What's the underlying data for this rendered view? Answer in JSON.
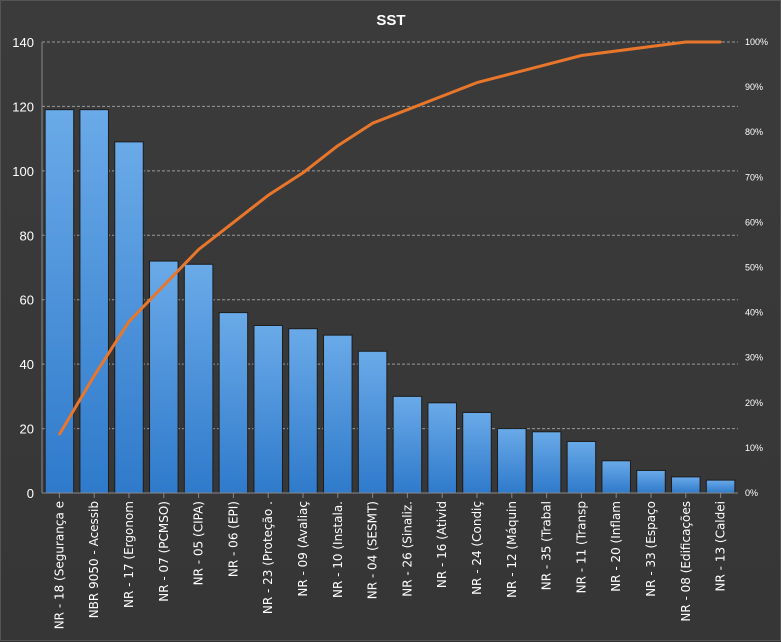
{
  "chart_data": {
    "type": "bar",
    "title": "SST",
    "categories": [
      "NR - 18 (Segurança e",
      "NBR 9050 - Acessib",
      "NR - 17 (Ergonom",
      "NR - 07 (PCMSO)",
      "NR - 05 (CIPA)",
      "NR - 06 (EPI)",
      "NR - 23 (Proteção .",
      "NR - 09 (Avaliaç",
      "NR - 10 (Instala.",
      "NR - 04 (SESMT)",
      "NR - 26 (Sinaliz.",
      "NR - 16 (Ativid",
      "NR - 24 (Condiç",
      "NR - 12 (Máquin",
      "NR - 35 (Trabal",
      "NR - 11 (Transp",
      "NR - 20 (Inflam",
      "NR - 33 (Espaço",
      "NR - 08 (Edificações",
      "NR - 13 (Caldei"
    ],
    "series": [
      {
        "values": [
          119,
          119,
          109,
          72,
          71,
          56,
          52,
          51,
          49,
          44,
          30,
          28,
          25,
          20,
          19,
          16,
          10,
          7,
          5,
          4
        ]
      },
      {
        "values": [
          13,
          26,
          38,
          46,
          54,
          60,
          66,
          71,
          77,
          82,
          85,
          88,
          91,
          93,
          95,
          97,
          98,
          99,
          100,
          100
        ]
      }
    ],
    "ylim": [
      0,
      140
    ],
    "yticks": [
      "0",
      "20",
      "40",
      "60",
      "80",
      "100",
      "120",
      "140"
    ],
    "y2lim": [
      0,
      100
    ],
    "y2ticks": [
      "0%",
      "10%",
      "20%",
      "30%",
      "40%",
      "50%",
      "60%",
      "70%",
      "80%",
      "90%",
      "100%"
    ],
    "grid": true,
    "colors": {
      "bar": "#4a90d9",
      "line": "#e8762b",
      "background": "#383838"
    }
  }
}
